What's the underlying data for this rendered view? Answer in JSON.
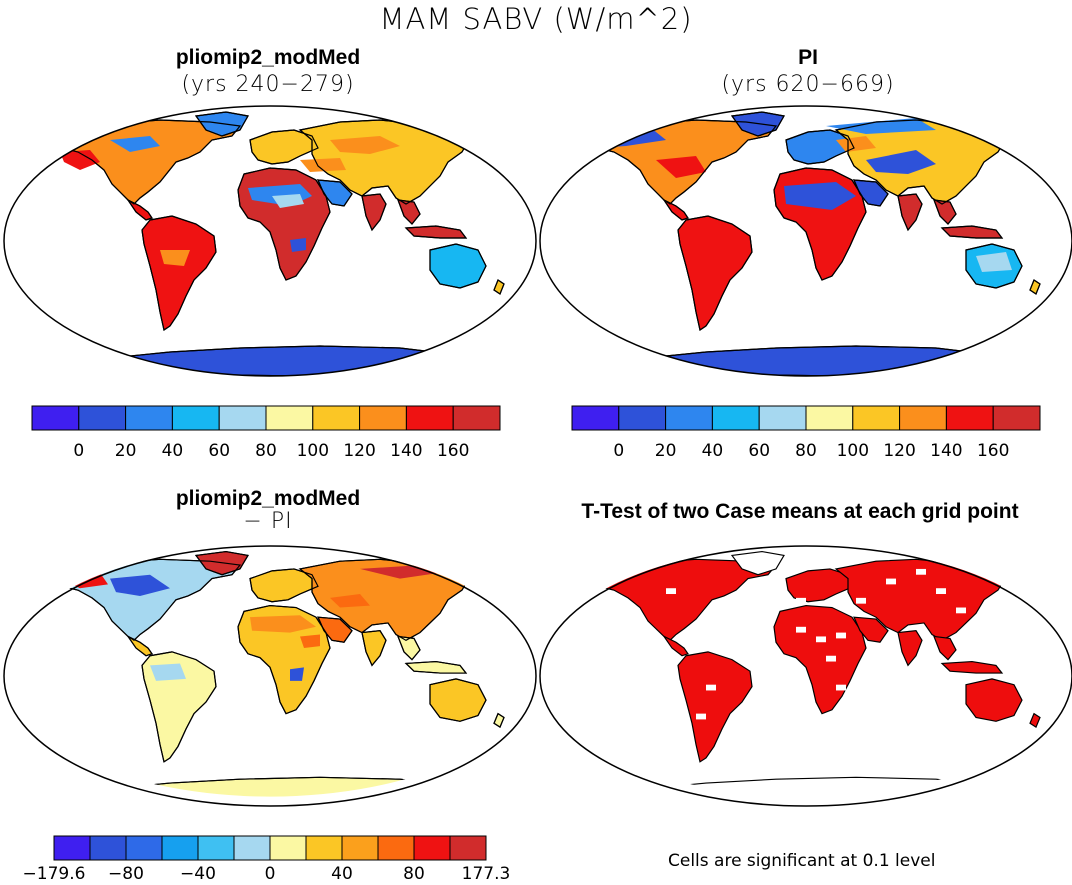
{
  "figure": {
    "title": "MAM SABV (W/m^2)"
  },
  "panels": [
    {
      "title": "pliomip2_modMed",
      "subtitle": "(yrs 240−279)"
    },
    {
      "title": "PI",
      "subtitle": "(yrs 620−669)"
    },
    {
      "title": "pliomip2_modMed",
      "subtitle": "− PI"
    },
    {
      "title": "T-Test of two Case means at each grid point",
      "subtitle": ""
    }
  ],
  "colorbars": {
    "absolute": {
      "colors": [
        "#3f1ff0",
        "#2e52d9",
        "#2e86ef",
        "#17b7f2",
        "#a6d8f0",
        "#fbf8a3",
        "#fbc625",
        "#fb8f1c",
        "#ef1212",
        "#d12c2c"
      ],
      "labels": [
        "0",
        "20",
        "40",
        "60",
        "80",
        "100",
        "120",
        "140",
        "160"
      ]
    },
    "difference": {
      "colors": [
        "#3f1ff0",
        "#2e52d9",
        "#2e6ae8",
        "#16a0ef",
        "#3fc0f2",
        "#a6d8f0",
        "#fbf8a3",
        "#fbc625",
        "#fba01c",
        "#fb6a10",
        "#ef1212",
        "#d12c2c"
      ],
      "labels": [
        "−179.6",
        "−80",
        "−40",
        "0",
        "40",
        "80",
        "177.3"
      ]
    }
  },
  "significance_color": "#ee0d0d",
  "footnote": "Cells are significant at 0.1 level"
}
